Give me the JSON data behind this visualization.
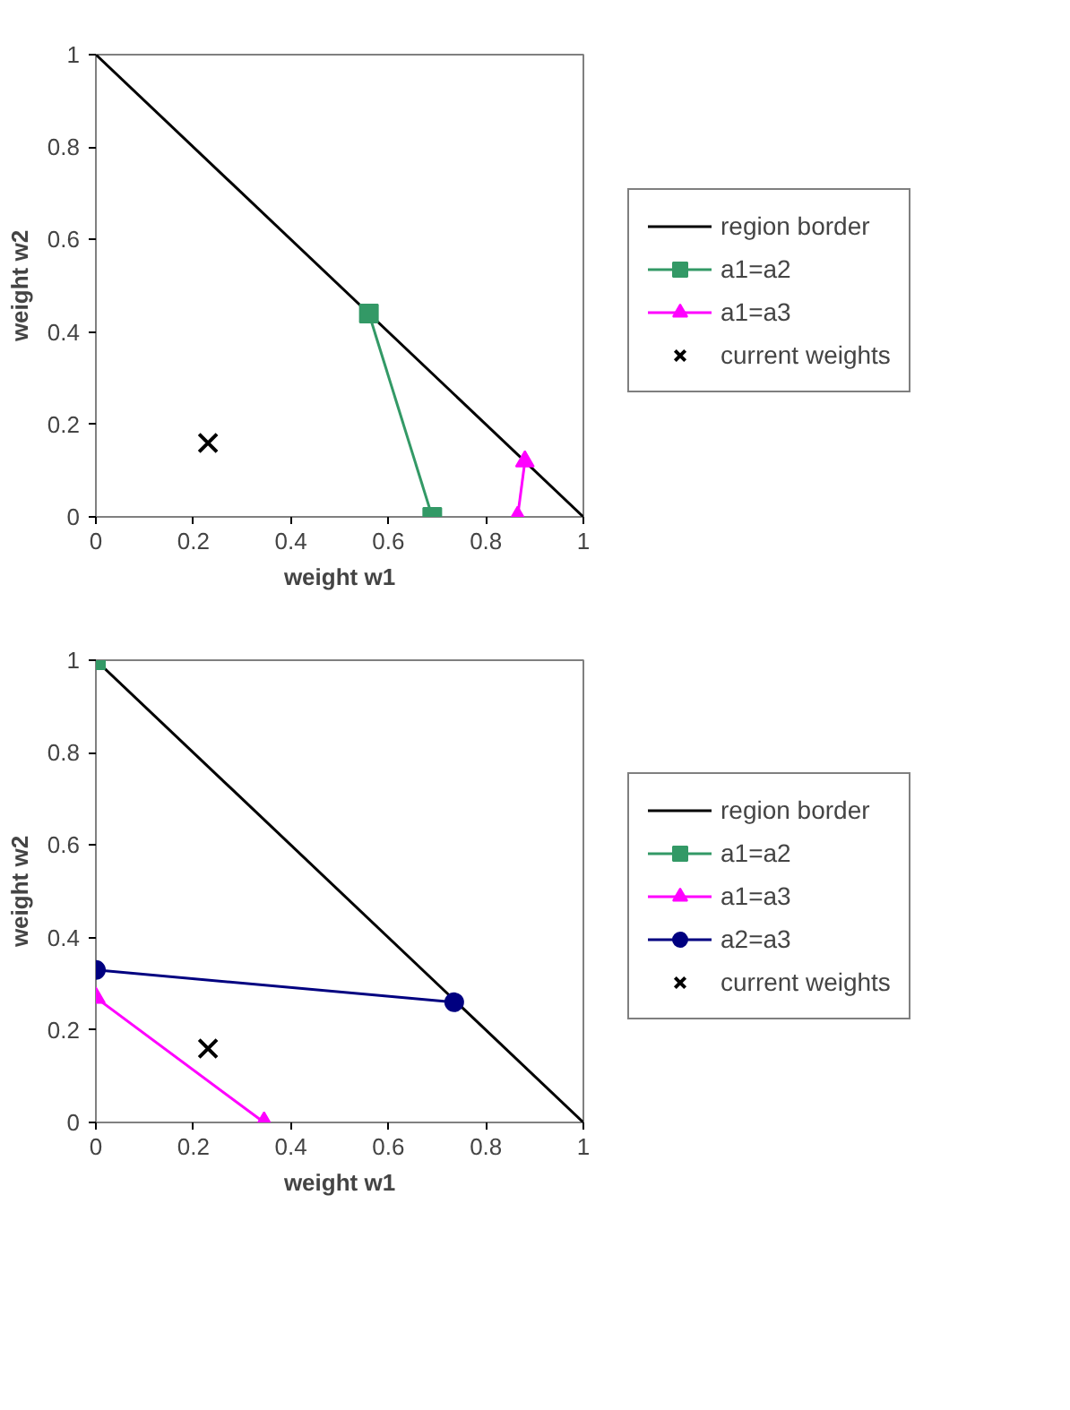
{
  "chart_data": [
    {
      "type": "line",
      "xlabel": "weight w1",
      "ylabel": "weight w2",
      "xlim": [
        0,
        1
      ],
      "ylim": [
        0,
        1
      ],
      "xticks": [
        0,
        0.2,
        0.4,
        0.6,
        0.8,
        1
      ],
      "yticks": [
        0,
        0.2,
        0.4,
        0.6,
        0.8,
        1
      ],
      "grid": false,
      "legend": "right",
      "series": [
        {
          "name": "region border",
          "color": "#000000",
          "type": "line",
          "marker": "none",
          "x": [
            0,
            1
          ],
          "values": [
            1,
            0
          ]
        },
        {
          "name": "a1=a2",
          "color": "#339966",
          "type": "line",
          "marker": "square",
          "x": [
            0.56,
            0.69
          ],
          "values": [
            0.44,
            0
          ]
        },
        {
          "name": "a1=a3",
          "color": "#ff00ff",
          "type": "line",
          "marker": "triangle",
          "x": [
            0.88,
            0.865
          ],
          "values": [
            0.12,
            0
          ]
        },
        {
          "name": "current weights",
          "color": "#000000",
          "type": "scatter",
          "marker": "cross",
          "x": [
            0.23
          ],
          "values": [
            0.16
          ]
        }
      ]
    },
    {
      "type": "line",
      "xlabel": "weight w1",
      "ylabel": "weight w2",
      "xlim": [
        0,
        1
      ],
      "ylim": [
        0,
        1
      ],
      "xticks": [
        0,
        0.2,
        0.4,
        0.6,
        0.8,
        1
      ],
      "yticks": [
        0,
        0.2,
        0.4,
        0.6,
        0.8,
        1
      ],
      "grid": false,
      "legend": "right",
      "series": [
        {
          "name": "region border",
          "color": "#000000",
          "type": "line",
          "marker": "none",
          "x": [
            0,
            1
          ],
          "values": [
            1,
            0
          ]
        },
        {
          "name": "a1=a2",
          "color": "#339966",
          "type": "line",
          "marker": "square",
          "x": [
            0
          ],
          "values": [
            1
          ]
        },
        {
          "name": "a1=a3",
          "color": "#ff00ff",
          "type": "line",
          "marker": "triangle",
          "x": [
            0,
            0.345
          ],
          "values": [
            0.27,
            0
          ]
        },
        {
          "name": "a2=a3",
          "color": "#000080",
          "type": "line",
          "marker": "circle",
          "x": [
            0,
            0.735
          ],
          "values": [
            0.33,
            0.26
          ]
        },
        {
          "name": "current weights",
          "color": "#000000",
          "type": "scatter",
          "marker": "cross",
          "x": [
            0.23
          ],
          "values": [
            0.16
          ]
        }
      ]
    }
  ]
}
